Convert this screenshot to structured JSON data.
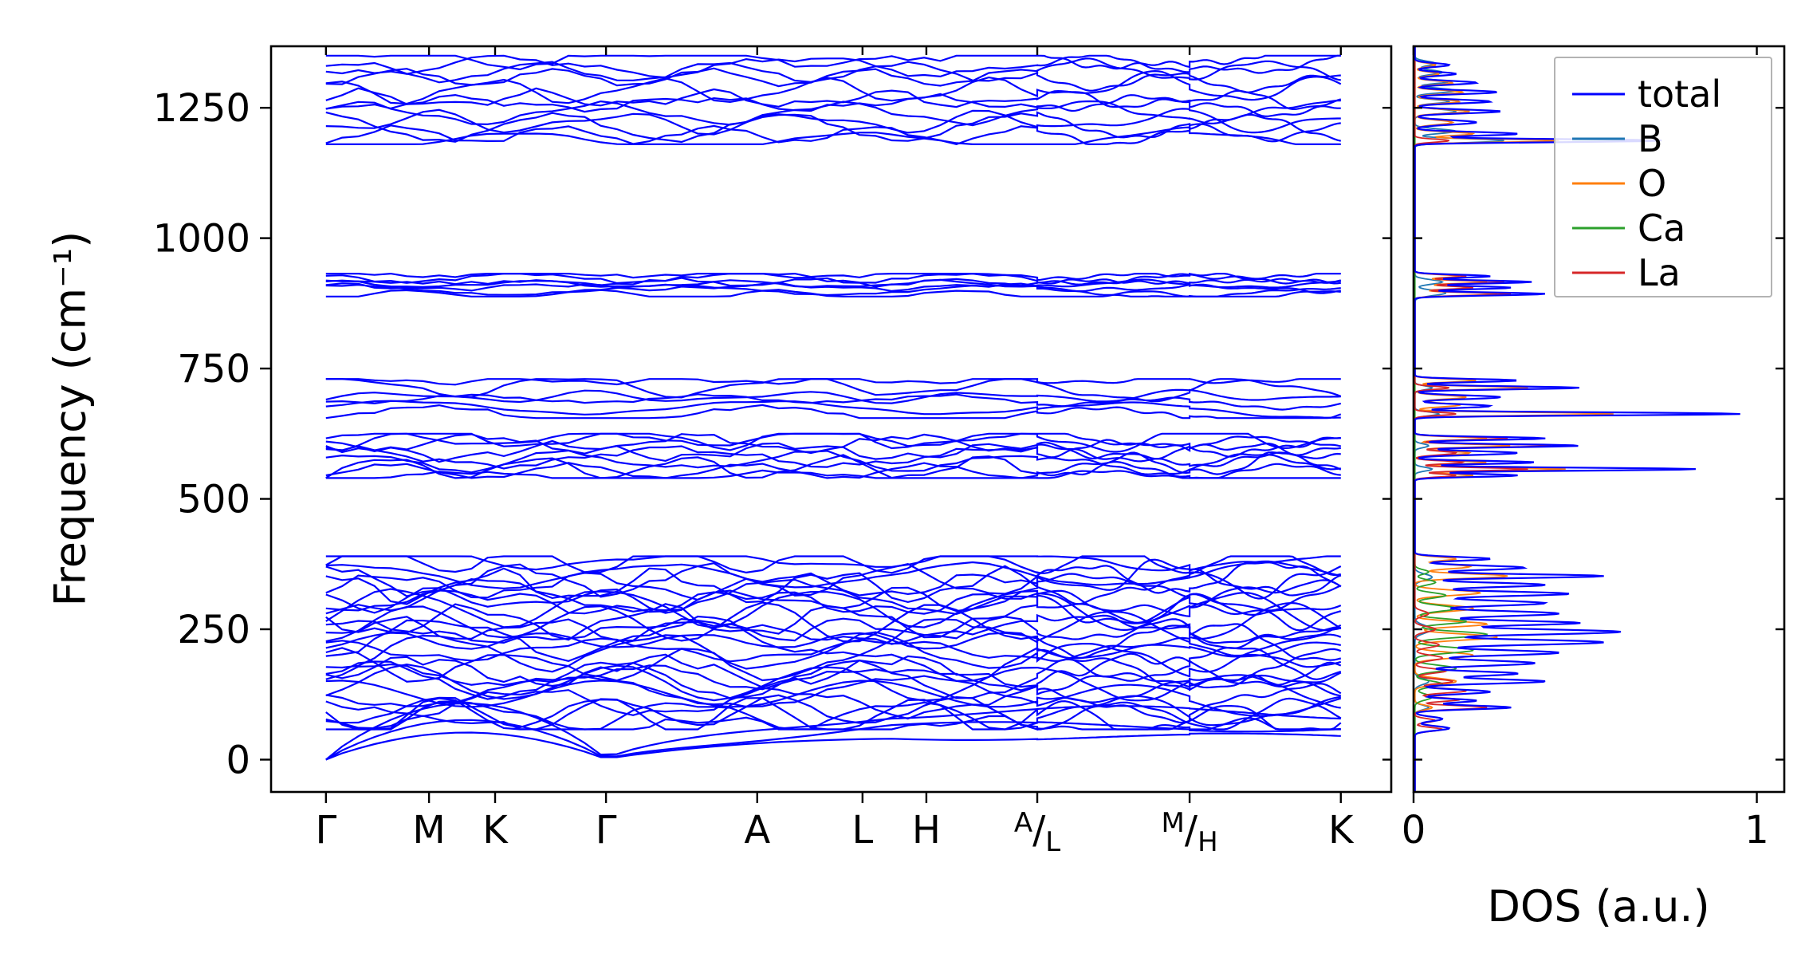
{
  "chart_data": [
    {
      "id": "band-structure",
      "type": "line",
      "title": "",
      "ylabel": "Frequency (cm⁻¹)",
      "ylim": [
        -62,
        1368
      ],
      "y_ticks": [
        0,
        250,
        500,
        750,
        1000,
        1250
      ],
      "line_color": "#0000ff",
      "x_start": 0.049,
      "x_end": 0.955,
      "segment_breaks": [
        0.684,
        0.82
      ],
      "x_ticks": [
        {
          "label": "Γ",
          "pos": 0.049
        },
        {
          "label": "M",
          "pos": 0.141
        },
        {
          "label": "K",
          "pos": 0.2
        },
        {
          "label": "Γ",
          "pos": 0.299
        },
        {
          "label": "A",
          "pos": 0.434
        },
        {
          "label": "L",
          "pos": 0.528
        },
        {
          "label": "H",
          "pos": 0.585
        },
        {
          "sup": "A",
          "sub": "L",
          "pos": 0.684
        },
        {
          "sup": "M",
          "sub": "H",
          "pos": 0.82
        },
        {
          "label": "K",
          "pos": 0.955
        }
      ],
      "band_groups": [
        {
          "name": "acoustic",
          "acoustic": true,
          "count": 3,
          "amps": [
            52,
            76,
            108
          ],
          "zeros": [
            0.049,
            0.299
          ],
          "freq_min": 0,
          "freq_max": 110,
          "jitter": 10
        },
        {
          "name": "low-optic",
          "count": 30,
          "freq_min": 58,
          "freq_max": 390,
          "jitter": 26
        },
        {
          "name": "mid-optic-1",
          "count": 9,
          "freq_min": 540,
          "freq_max": 625,
          "jitter": 16
        },
        {
          "name": "mid-optic-2",
          "count": 6,
          "freq_min": 655,
          "freq_max": 730,
          "jitter": 13
        },
        {
          "name": "high-optic",
          "count": 7,
          "freq_min": 888,
          "freq_max": 932,
          "jitter": 7
        },
        {
          "name": "top-optic",
          "count": 12,
          "freq_min": 1180,
          "freq_max": 1350,
          "jitter": 20
        }
      ]
    },
    {
      "id": "dos",
      "type": "line",
      "xlabel": "DOS (a.u.)",
      "xlim": [
        0,
        1.08
      ],
      "x_ticks": [
        0,
        1
      ],
      "legend": [
        {
          "label": "total",
          "color": "#0000ff"
        },
        {
          "label": "B",
          "color": "#1f77b4"
        },
        {
          "label": "O",
          "color": "#ff7f0e"
        },
        {
          "label": "Ca",
          "color": "#2ca02c"
        },
        {
          "label": "La",
          "color": "#d62728"
        }
      ],
      "draw_order": [
        "B",
        "O",
        "Ca",
        "La",
        "total"
      ],
      "series": [
        {
          "name": "total",
          "color": "#0000ff",
          "peaks": [
            [
              60,
              0.1,
              6
            ],
            [
              78,
              0.08,
              6
            ],
            [
              100,
              0.28,
              5
            ],
            [
              113,
              0.18,
              5
            ],
            [
              130,
              0.22,
              6
            ],
            [
              150,
              0.38,
              6
            ],
            [
              165,
              0.3,
              6
            ],
            [
              185,
              0.35,
              7
            ],
            [
              205,
              0.42,
              7
            ],
            [
              225,
              0.55,
              7
            ],
            [
              245,
              0.6,
              7
            ],
            [
              262,
              0.48,
              6
            ],
            [
              280,
              0.42,
              7
            ],
            [
              300,
              0.38,
              7
            ],
            [
              318,
              0.45,
              6
            ],
            [
              335,
              0.38,
              6
            ],
            [
              352,
              0.55,
              5
            ],
            [
              368,
              0.32,
              6
            ],
            [
              385,
              0.22,
              5
            ],
            [
              545,
              0.3,
              4
            ],
            [
              557,
              0.82,
              4
            ],
            [
              570,
              0.35,
              4
            ],
            [
              588,
              0.3,
              5
            ],
            [
              602,
              0.48,
              4
            ],
            [
              616,
              0.38,
              4
            ],
            [
              663,
              0.95,
              4
            ],
            [
              678,
              0.22,
              5
            ],
            [
              695,
              0.25,
              5
            ],
            [
              713,
              0.48,
              4
            ],
            [
              727,
              0.3,
              4
            ],
            [
              893,
              0.38,
              4
            ],
            [
              905,
              0.28,
              4
            ],
            [
              916,
              0.34,
              4
            ],
            [
              927,
              0.22,
              4
            ],
            [
              1187,
              0.72,
              4
            ],
            [
              1200,
              0.3,
              5
            ],
            [
              1222,
              0.18,
              6
            ],
            [
              1243,
              0.25,
              5
            ],
            [
              1262,
              0.22,
              5
            ],
            [
              1280,
              0.24,
              5
            ],
            [
              1298,
              0.18,
              5
            ],
            [
              1315,
              0.12,
              5
            ],
            [
              1332,
              0.1,
              5
            ]
          ]
        },
        {
          "name": "B",
          "color": "#1f77b4",
          "peaks": [
            [
              100,
              0.04,
              6
            ],
            [
              150,
              0.04,
              8
            ],
            [
              250,
              0.05,
              10
            ],
            [
              350,
              0.05,
              8
            ],
            [
              557,
              0.05,
              5
            ],
            [
              602,
              0.04,
              5
            ],
            [
              663,
              0.07,
              5
            ],
            [
              713,
              0.05,
              5
            ],
            [
              895,
              0.09,
              7
            ],
            [
              916,
              0.08,
              6
            ],
            [
              1187,
              0.26,
              5
            ],
            [
              1205,
              0.12,
              6
            ],
            [
              1243,
              0.12,
              6
            ],
            [
              1262,
              0.1,
              5
            ],
            [
              1283,
              0.12,
              6
            ],
            [
              1300,
              0.1,
              5
            ],
            [
              1318,
              0.08,
              6
            ],
            [
              1335,
              0.06,
              6
            ]
          ]
        },
        {
          "name": "O",
          "color": "#ff7f0e",
          "peaks": [
            [
              100,
              0.05,
              6
            ],
            [
              150,
              0.12,
              8
            ],
            [
              200,
              0.17,
              8
            ],
            [
              235,
              0.24,
              8
            ],
            [
              260,
              0.21,
              7
            ],
            [
              290,
              0.17,
              8
            ],
            [
              320,
              0.19,
              7
            ],
            [
              352,
              0.27,
              6
            ],
            [
              370,
              0.16,
              6
            ],
            [
              385,
              0.12,
              5
            ],
            [
              545,
              0.17,
              4
            ],
            [
              557,
              0.44,
              4
            ],
            [
              570,
              0.21,
              4
            ],
            [
              588,
              0.16,
              5
            ],
            [
              602,
              0.28,
              4
            ],
            [
              616,
              0.21,
              4
            ],
            [
              663,
              0.58,
              4
            ],
            [
              680,
              0.13,
              5
            ],
            [
              695,
              0.15,
              5
            ],
            [
              713,
              0.33,
              4
            ],
            [
              727,
              0.18,
              4
            ],
            [
              893,
              0.24,
              4
            ],
            [
              905,
              0.16,
              4
            ],
            [
              916,
              0.21,
              4
            ],
            [
              927,
              0.13,
              4
            ],
            [
              1187,
              0.42,
              4
            ],
            [
              1200,
              0.17,
              5
            ],
            [
              1222,
              0.11,
              6
            ],
            [
              1243,
              0.16,
              5
            ],
            [
              1262,
              0.13,
              5
            ],
            [
              1280,
              0.14,
              5
            ],
            [
              1298,
              0.11,
              5
            ],
            [
              1315,
              0.07,
              5
            ],
            [
              1332,
              0.06,
              5
            ]
          ]
        },
        {
          "name": "Ca",
          "color": "#2ca02c",
          "peaks": [
            [
              120,
              0.05,
              8
            ],
            [
              145,
              0.08,
              8
            ],
            [
              175,
              0.12,
              8
            ],
            [
              210,
              0.17,
              8
            ],
            [
              240,
              0.21,
              8
            ],
            [
              265,
              0.15,
              7
            ],
            [
              290,
              0.12,
              8
            ],
            [
              315,
              0.09,
              7
            ],
            [
              340,
              0.06,
              7
            ],
            [
              360,
              0.04,
              6
            ]
          ]
        },
        {
          "name": "La",
          "color": "#d62728",
          "peaks": [
            [
              58,
              0.08,
              5
            ],
            [
              75,
              0.06,
              5
            ],
            [
              100,
              0.21,
              5
            ],
            [
              115,
              0.13,
              5
            ],
            [
              132,
              0.15,
              6
            ],
            [
              150,
              0.11,
              6
            ],
            [
              170,
              0.09,
              6
            ],
            [
              195,
              0.08,
              7
            ],
            [
              220,
              0.07,
              7
            ],
            [
              250,
              0.06,
              7
            ],
            [
              280,
              0.04,
              7
            ],
            [
              545,
              0.12,
              4
            ],
            [
              557,
              0.33,
              4
            ],
            [
              570,
              0.14,
              4
            ],
            [
              588,
              0.12,
              5
            ],
            [
              602,
              0.4,
              4
            ],
            [
              616,
              0.27,
              4
            ],
            [
              663,
              0.12,
              4
            ],
            [
              713,
              0.1,
              4
            ],
            [
              893,
              0.28,
              4
            ],
            [
              905,
              0.17,
              4
            ],
            [
              916,
              0.26,
              4
            ],
            [
              927,
              0.15,
              4
            ],
            [
              1187,
              0.1,
              4
            ]
          ]
        }
      ]
    }
  ]
}
